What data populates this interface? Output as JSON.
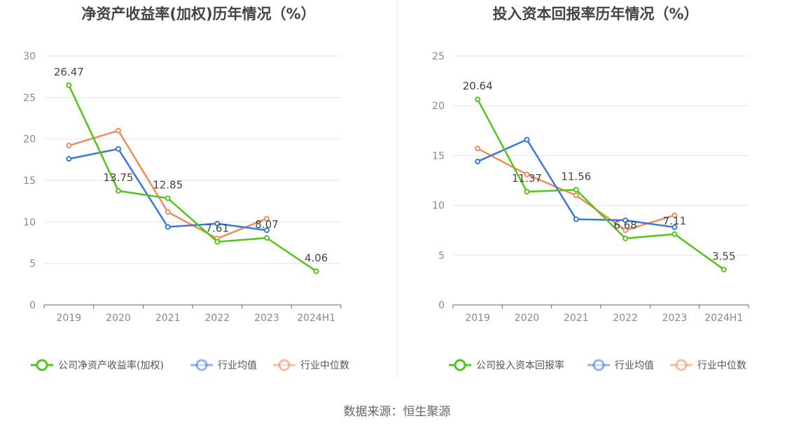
{
  "chart_data": [
    {
      "type": "line",
      "title": "净资产收益率(加权)历年情况（%）",
      "categories": [
        "2019",
        "2020",
        "2021",
        "2022",
        "2023",
        "2024H1"
      ],
      "ylim": [
        0,
        30
      ],
      "yticks": [
        0,
        5,
        10,
        15,
        20,
        25,
        30
      ],
      "grid": true,
      "legend_position": "bottom",
      "series": [
        {
          "name": "公司净资产收益率(加权)",
          "color": "#52c41a",
          "values": [
            26.47,
            13.75,
            12.85,
            7.61,
            8.07,
            4.06
          ],
          "labels": [
            "26.47",
            "13.75",
            "12.85",
            "7.61",
            "8.07",
            "4.06"
          ]
        },
        {
          "name": "行业均值",
          "color": "#3a78dc",
          "values": [
            17.6,
            18.8,
            9.4,
            9.8,
            9.0,
            null
          ]
        },
        {
          "name": "行业中位数",
          "color": "#f08c5a",
          "values": [
            19.2,
            21.0,
            11.2,
            8.0,
            10.4,
            null
          ]
        }
      ]
    },
    {
      "type": "line",
      "title": "投入资本回报率历年情况（%）",
      "categories": [
        "2019",
        "2020",
        "2021",
        "2022",
        "2023",
        "2024H1"
      ],
      "ylim": [
        0,
        25
      ],
      "yticks": [
        0,
        5,
        10,
        15,
        20,
        25
      ],
      "grid": true,
      "legend_position": "bottom",
      "series": [
        {
          "name": "公司投入资本回报率",
          "color": "#52c41a",
          "values": [
            20.64,
            11.37,
            11.56,
            6.68,
            7.11,
            3.55
          ],
          "labels": [
            "20.64",
            "11.37",
            "11.56",
            "6.68",
            "7.11",
            "3.55"
          ]
        },
        {
          "name": "行业均值",
          "color": "#3a78dc",
          "values": [
            14.4,
            16.6,
            8.6,
            8.5,
            7.8,
            null
          ]
        },
        {
          "name": "行业中位数",
          "color": "#f08c5a",
          "values": [
            15.7,
            13.1,
            11.0,
            7.5,
            9.0,
            null
          ]
        }
      ]
    }
  ],
  "source": "数据来源：恒生聚源"
}
